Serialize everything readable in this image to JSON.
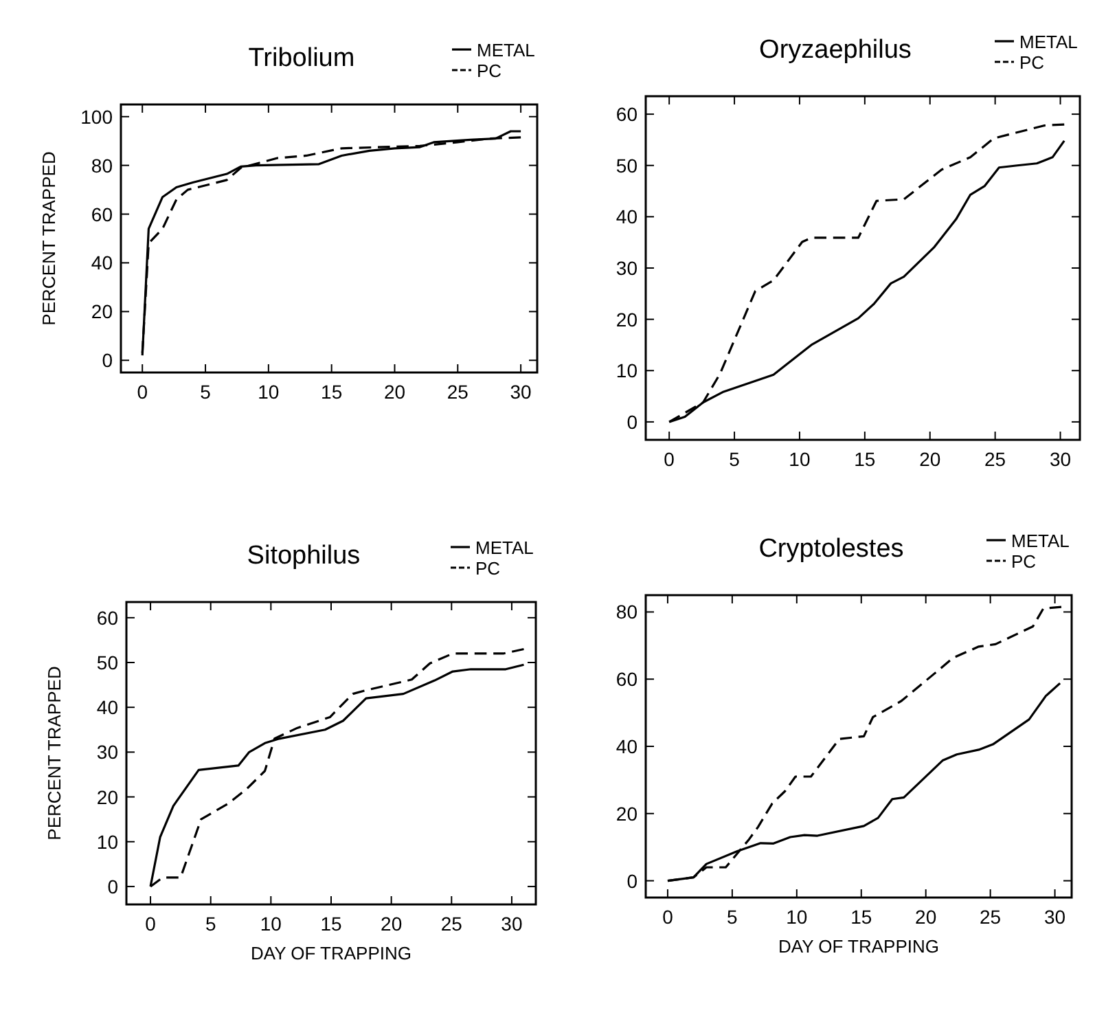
{
  "chart_data": [
    {
      "type": "line",
      "title": "Tribolium",
      "ylabel": "PERCENT TRAPPED",
      "xlim": [
        -1.7,
        31.3
      ],
      "ylim": [
        -5,
        105
      ],
      "xticks": [
        0,
        5,
        10,
        15,
        20,
        25,
        30
      ],
      "yticks": [
        0,
        20,
        40,
        60,
        80,
        100
      ],
      "legend": "top right",
      "series": [
        {
          "name": "METAL",
          "color": "#000000",
          "line_style": "solid",
          "x": [
            0,
            0.5,
            1.6,
            2.7,
            4,
            6.7,
            7.8,
            9,
            14,
            15.8,
            18,
            20,
            22,
            23.1,
            26,
            28,
            29.2,
            30
          ],
          "values": [
            2,
            54,
            67,
            71,
            73,
            76.5,
            79.5,
            80,
            80.5,
            84,
            86,
            87,
            87.5,
            89.5,
            90.5,
            91,
            94,
            94
          ]
        },
        {
          "name": "PC",
          "color": "#000000",
          "line_style": "dashed",
          "x": [
            0,
            0.5,
            1.6,
            2.7,
            3.6,
            6.7,
            7.8,
            10.7,
            13,
            15.8,
            22,
            25,
            27.5,
            30
          ],
          "values": [
            3,
            48,
            54,
            66,
            70,
            74,
            79,
            83,
            84,
            87,
            88,
            89.5,
            91,
            91.5
          ]
        }
      ]
    },
    {
      "type": "line",
      "title": "Oryzaephilus",
      "xlim": [
        -1.8,
        31.5
      ],
      "ylim": [
        -3.5,
        63.5
      ],
      "xticks": [
        0,
        5,
        10,
        15,
        20,
        25,
        30
      ],
      "yticks": [
        0,
        10,
        20,
        30,
        40,
        50,
        60
      ],
      "legend": "top right",
      "series": [
        {
          "name": "METAL",
          "color": "#000000",
          "line_style": "solid",
          "x": [
            0,
            1.2,
            2.6,
            4.1,
            8,
            8.7,
            10.9,
            14.5,
            15.7,
            17,
            18,
            20.3,
            22,
            23.1,
            24.2,
            25.3,
            26.7,
            28.2,
            29.4,
            30.3
          ],
          "values": [
            0,
            1,
            3.8,
            5.8,
            9.2,
            10.6,
            15,
            20.2,
            23,
            27,
            28.3,
            34,
            39.5,
            44.3,
            46,
            49.6,
            50,
            50.4,
            51.6,
            54.8
          ]
        },
        {
          "name": "PC",
          "color": "#000000",
          "line_style": "dashed",
          "x": [
            0,
            2.6,
            3.9,
            6.6,
            8,
            10.2,
            10.9,
            14.5,
            15.9,
            18,
            20.9,
            23.1,
            24.9,
            28.8,
            30.3
          ],
          "values": [
            0,
            3.8,
            9.4,
            25.5,
            27.6,
            35.1,
            35.9,
            35.9,
            43.1,
            43.4,
            49.2,
            51.6,
            55.3,
            57.8,
            58
          ]
        }
      ]
    },
    {
      "type": "line",
      "title": "Sitophilus",
      "xlabel": "DAY OF TRAPPING",
      "ylabel": "PERCENT TRAPPED",
      "xlim": [
        -2,
        32
      ],
      "ylim": [
        -4,
        63.5
      ],
      "xticks": [
        0,
        5,
        10,
        15,
        20,
        25,
        30
      ],
      "yticks": [
        0,
        10,
        20,
        30,
        40,
        50,
        60
      ],
      "legend": "top right",
      "series": [
        {
          "name": "METAL",
          "color": "#000000",
          "line_style": "solid",
          "x": [
            0,
            0.8,
            1.9,
            4,
            7.3,
            8.2,
            9.5,
            10.7,
            14.5,
            16,
            17.9,
            21,
            23.6,
            25.1,
            26.6,
            29.5,
            31
          ],
          "values": [
            0,
            11,
            18,
            26,
            27,
            30,
            32,
            33,
            35,
            37,
            42,
            43,
            46,
            48,
            48.5,
            48.5,
            49.5
          ]
        },
        {
          "name": "PC",
          "color": "#000000",
          "line_style": "dashed",
          "x": [
            0,
            1,
            2.5,
            4.2,
            6.5,
            8,
            9.5,
            10.3,
            12.2,
            14.9,
            16.8,
            17.9,
            21.7,
            23.2,
            25.1,
            29.3,
            31
          ],
          "values": [
            0,
            2,
            2,
            15,
            18.6,
            21.8,
            25.8,
            33,
            35.4,
            37.8,
            43,
            43.8,
            46.2,
            49.8,
            52,
            52,
            53
          ]
        }
      ]
    },
    {
      "type": "line",
      "title": "Cryptolestes",
      "xlabel": "DAY OF TRAPPING",
      "xlim": [
        -1.7,
        31.3
      ],
      "ylim": [
        -5,
        85
      ],
      "xticks": [
        0,
        5,
        10,
        15,
        20,
        25,
        30
      ],
      "yticks": [
        0,
        20,
        40,
        60,
        80
      ],
      "legend": "top right",
      "series": [
        {
          "name": "METAL",
          "color": "#000000",
          "line_style": "solid",
          "x": [
            0,
            1,
            2,
            3,
            5.4,
            7.2,
            8.2,
            9.5,
            10.6,
            11.6,
            15.2,
            16.3,
            17.4,
            18.3,
            21.3,
            22.4,
            24.1,
            25.2,
            28,
            29.3,
            30.4
          ],
          "values": [
            0,
            0.5,
            1,
            5,
            8.8,
            11.2,
            11.1,
            13,
            13.6,
            13.4,
            16.3,
            18.7,
            24.3,
            24.8,
            35.8,
            37.6,
            39,
            40.6,
            48,
            55,
            58.8
          ]
        },
        {
          "name": "PC",
          "color": "#000000",
          "line_style": "dashed",
          "x": [
            0,
            2,
            3,
            4.5,
            6.3,
            7,
            8.1,
            9.1,
            9.9,
            11.1,
            13.3,
            15.2,
            15.9,
            18.1,
            20.9,
            22.1,
            24.1,
            25.4,
            28.3,
            29.1,
            30.5
          ],
          "values": [
            0,
            1,
            4,
            4,
            12.3,
            16,
            23,
            26.7,
            31,
            31,
            42.2,
            43,
            48.7,
            53.5,
            62.4,
            66.3,
            69.7,
            70.4,
            75.7,
            81,
            81.5
          ]
        }
      ]
    }
  ]
}
